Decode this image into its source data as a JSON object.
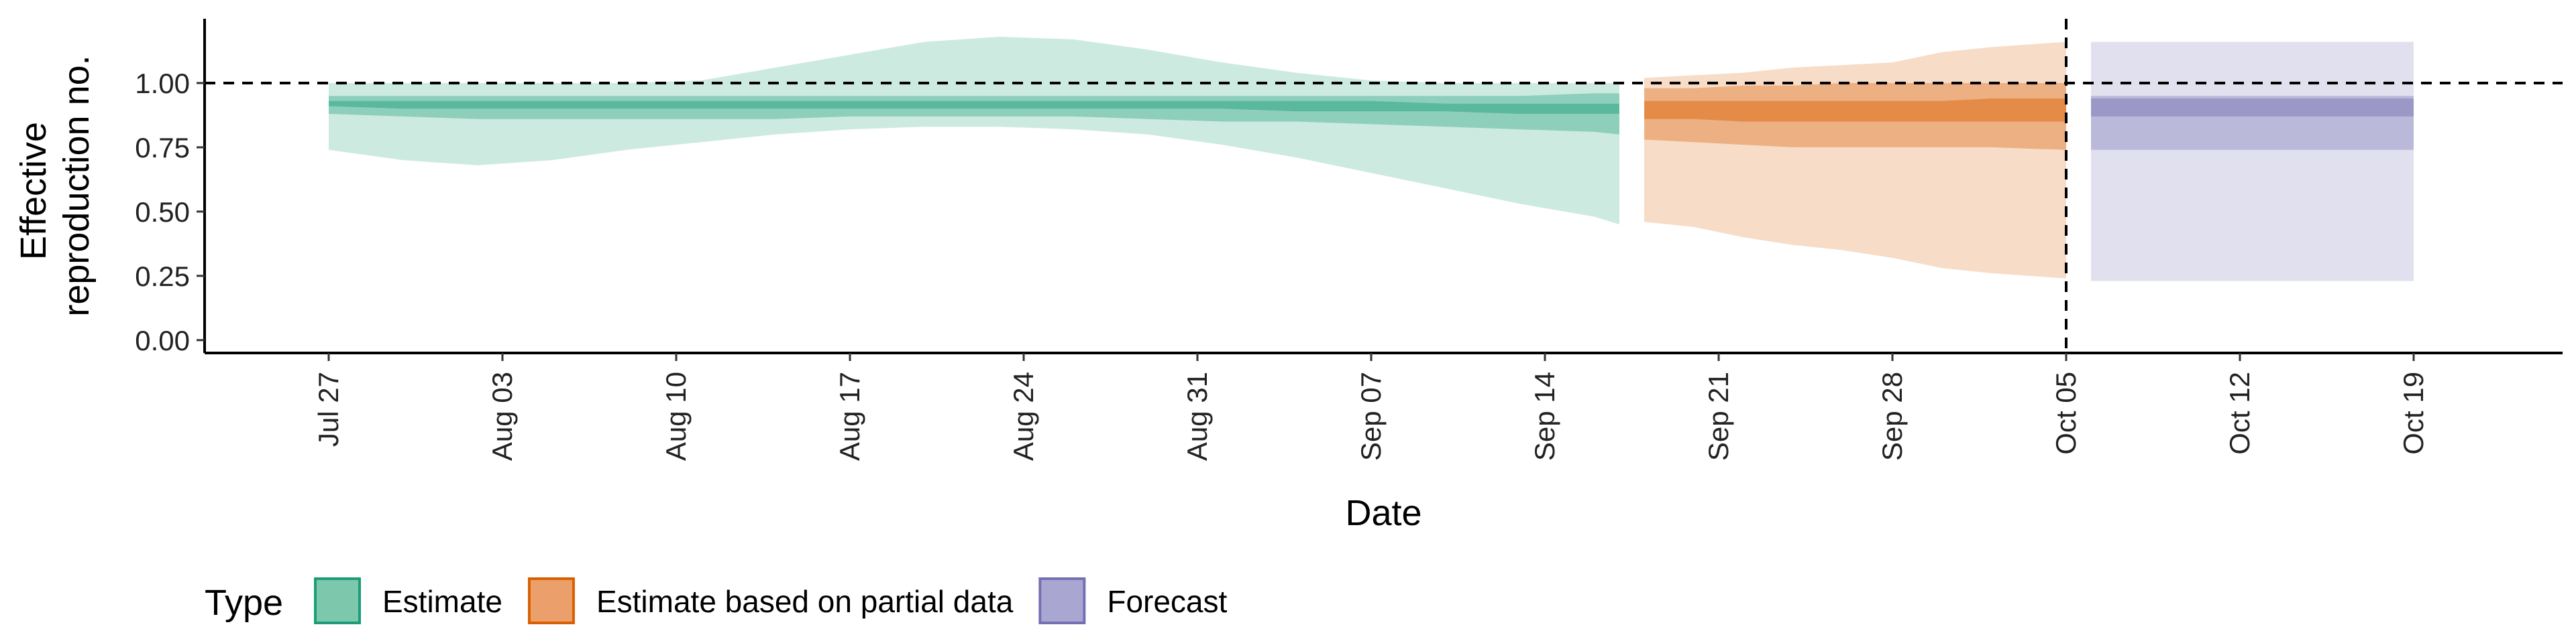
{
  "chart_data": {
    "type": "area",
    "title": "",
    "xlabel": "Date",
    "ylabel_lines": [
      "Effective",
      "reproduction no."
    ],
    "ylim": [
      -0.05,
      1.25
    ],
    "yticks": [
      {
        "value": 0.0,
        "label": "0.00"
      },
      {
        "value": 0.25,
        "label": "0.25"
      },
      {
        "value": 0.5,
        "label": "0.50"
      },
      {
        "value": 0.75,
        "label": "0.75"
      },
      {
        "value": 1.0,
        "label": "1.00"
      }
    ],
    "xlim": [
      "2020-07-22",
      "2020-10-25"
    ],
    "xticks": [
      {
        "date": "2020-07-27",
        "label": "Jul 27"
      },
      {
        "date": "2020-08-03",
        "label": "Aug 03"
      },
      {
        "date": "2020-08-10",
        "label": "Aug 10"
      },
      {
        "date": "2020-08-17",
        "label": "Aug 17"
      },
      {
        "date": "2020-08-24",
        "label": "Aug 24"
      },
      {
        "date": "2020-08-31",
        "label": "Aug 31"
      },
      {
        "date": "2020-09-07",
        "label": "Sep 07"
      },
      {
        "date": "2020-09-14",
        "label": "Sep 14"
      },
      {
        "date": "2020-09-21",
        "label": "Sep 21"
      },
      {
        "date": "2020-09-28",
        "label": "Sep 28"
      },
      {
        "date": "2020-10-05",
        "label": "Oct 05"
      },
      {
        "date": "2020-10-12",
        "label": "Oct 12"
      },
      {
        "date": "2020-10-19",
        "label": "Oct 19"
      }
    ],
    "reference_lines": {
      "horizontal_y": 1.0,
      "vertical_date": "2020-10-05",
      "style": "dashed"
    },
    "legend": {
      "title": "Type",
      "placement": "bottom-left",
      "entries": [
        {
          "label": "Estimate",
          "fill": "#7dc7ad",
          "stroke": "#1b9e77"
        },
        {
          "label": "Estimate based on partial data",
          "fill": "#eba06b",
          "stroke": "#d95f02"
        },
        {
          "label": "Forecast",
          "fill": "#aaa6d2",
          "stroke": "#7570b3"
        }
      ]
    },
    "series": [
      {
        "name": "Estimate",
        "color": "#1b9e77",
        "x": [
          "2020-07-27",
          "2020-07-30",
          "2020-08-02",
          "2020-08-05",
          "2020-08-08",
          "2020-08-11",
          "2020-08-14",
          "2020-08-17",
          "2020-08-20",
          "2020-08-23",
          "2020-08-26",
          "2020-08-29",
          "2020-09-01",
          "2020-09-04",
          "2020-09-07",
          "2020-09-10",
          "2020-09-13",
          "2020-09-16",
          "2020-09-17"
        ],
        "lower90": [
          0.74,
          0.7,
          0.68,
          0.7,
          0.74,
          0.77,
          0.8,
          0.82,
          0.83,
          0.83,
          0.82,
          0.8,
          0.76,
          0.71,
          0.65,
          0.59,
          0.53,
          0.48,
          0.45
        ],
        "upper90": [
          1.0,
          1.0,
          1.0,
          1.0,
          1.0,
          1.01,
          1.06,
          1.11,
          1.16,
          1.18,
          1.17,
          1.13,
          1.08,
          1.04,
          1.01,
          1.0,
          1.0,
          1.0,
          1.0
        ],
        "lower50": [
          0.88,
          0.87,
          0.86,
          0.86,
          0.86,
          0.86,
          0.86,
          0.87,
          0.87,
          0.87,
          0.87,
          0.86,
          0.85,
          0.85,
          0.84,
          0.83,
          0.82,
          0.81,
          0.8
        ],
        "upper50": [
          0.95,
          0.95,
          0.95,
          0.95,
          0.95,
          0.95,
          0.95,
          0.95,
          0.95,
          0.95,
          0.95,
          0.95,
          0.95,
          0.95,
          0.95,
          0.95,
          0.95,
          0.96,
          0.96
        ],
        "lower20": [
          0.91,
          0.9,
          0.9,
          0.9,
          0.9,
          0.9,
          0.9,
          0.9,
          0.9,
          0.9,
          0.9,
          0.9,
          0.9,
          0.89,
          0.89,
          0.89,
          0.88,
          0.88,
          0.88
        ],
        "upper20": [
          0.93,
          0.93,
          0.93,
          0.93,
          0.93,
          0.93,
          0.93,
          0.93,
          0.93,
          0.93,
          0.93,
          0.93,
          0.93,
          0.93,
          0.93,
          0.92,
          0.92,
          0.92,
          0.92
        ]
      },
      {
        "name": "Estimate based on partial data",
        "color": "#d95f02",
        "x": [
          "2020-09-18",
          "2020-09-20",
          "2020-09-22",
          "2020-09-24",
          "2020-09-26",
          "2020-09-28",
          "2020-09-30",
          "2020-10-02",
          "2020-10-05"
        ],
        "lower90": [
          0.46,
          0.44,
          0.4,
          0.37,
          0.35,
          0.32,
          0.28,
          0.26,
          0.24
        ],
        "upper90": [
          1.02,
          1.03,
          1.04,
          1.06,
          1.07,
          1.08,
          1.12,
          1.14,
          1.16
        ],
        "lower50": [
          0.78,
          0.77,
          0.76,
          0.75,
          0.75,
          0.75,
          0.75,
          0.75,
          0.74
        ],
        "upper50": [
          0.98,
          0.98,
          0.99,
          0.99,
          1.0,
          1.0,
          1.0,
          1.0,
          1.0
        ],
        "lower20": [
          0.86,
          0.86,
          0.85,
          0.85,
          0.85,
          0.85,
          0.85,
          0.85,
          0.85
        ],
        "upper20": [
          0.93,
          0.93,
          0.93,
          0.93,
          0.93,
          0.93,
          0.93,
          0.94,
          0.94
        ]
      },
      {
        "name": "Forecast",
        "color": "#7570b3",
        "x": [
          "2020-10-06",
          "2020-10-19"
        ],
        "lower90": [
          0.23,
          0.23
        ],
        "upper90": [
          1.16,
          1.16
        ],
        "lower50": [
          0.74,
          0.74
        ],
        "upper50": [
          0.95,
          0.95
        ],
        "lower20": [
          0.87,
          0.87
        ],
        "upper20": [
          0.94,
          0.94
        ]
      }
    ]
  }
}
